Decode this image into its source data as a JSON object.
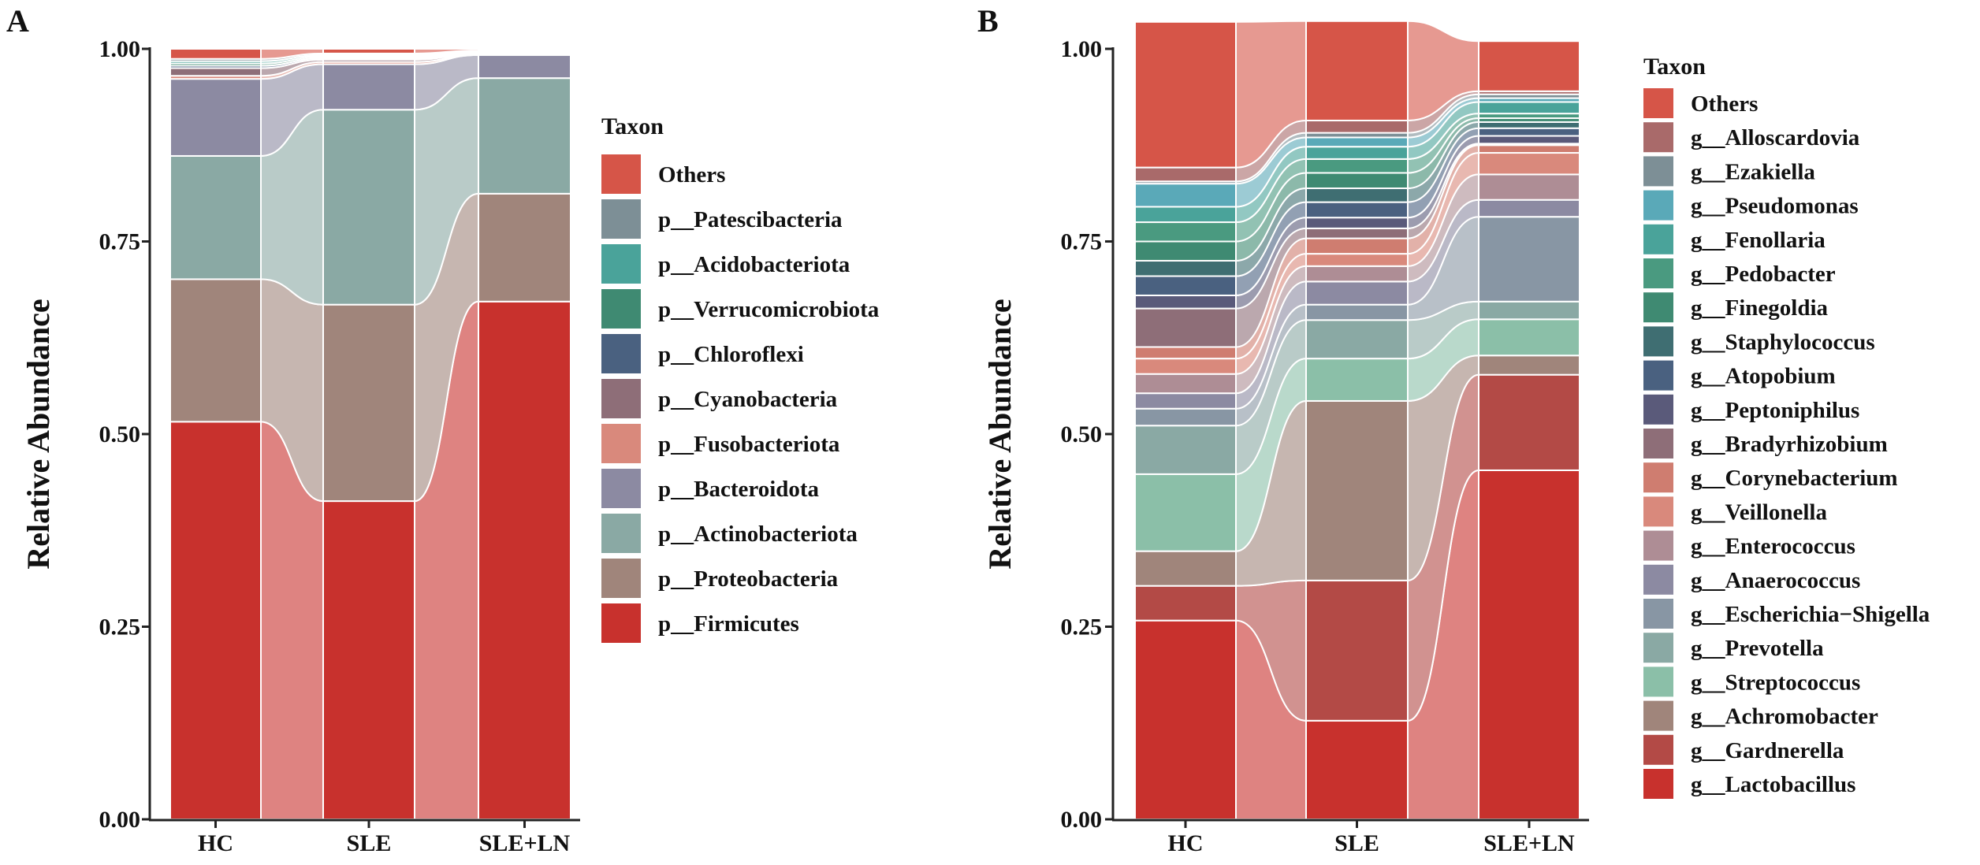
{
  "chart_data": [
    {
      "type": "stacked-bar-alluvial",
      "panel_label": "A",
      "title": "",
      "xlabel": "",
      "ylabel": "Relative Abundance",
      "ylim": [
        0,
        1
      ],
      "yticks": [
        "0.00",
        "0.25",
        "0.50",
        "0.75",
        "1.00"
      ],
      "categories": [
        "HC",
        "SLE",
        "SLE+LN"
      ],
      "legend_title": "Taxon",
      "series": [
        {
          "name": "p__Firmicutes",
          "color": "#c8312d",
          "values": [
            0.516,
            0.413,
            0.672
          ]
        },
        {
          "name": "p__Proteobacteria",
          "color": "#a0857b",
          "values": [
            0.185,
            0.255,
            0.14
          ]
        },
        {
          "name": "p__Actinobacteriota",
          "color": "#8aa9a4",
          "values": [
            0.16,
            0.253,
            0.15
          ]
        },
        {
          "name": "p__Bacteroidota",
          "color": "#8c8aa2",
          "values": [
            0.1,
            0.059,
            0.03
          ]
        },
        {
          "name": "p__Fusobacteriota",
          "color": "#d9897c",
          "values": [
            0.004,
            0.003,
            0.001
          ]
        },
        {
          "name": "p__Cyanobacteria",
          "color": "#8e6e78",
          "values": [
            0.01,
            0.003,
            0.001
          ]
        },
        {
          "name": "p__Chloroflexi",
          "color": "#4a6180",
          "values": [
            0.003,
            0.002,
            0.001
          ]
        },
        {
          "name": "p__Verrucomicrobiota",
          "color": "#3f8a72",
          "values": [
            0.003,
            0.002,
            0.001
          ]
        },
        {
          "name": "p__Acidobacteriota",
          "color": "#4aa39a",
          "values": [
            0.003,
            0.002,
            0.001
          ]
        },
        {
          "name": "p__Patescibacteria",
          "color": "#7d8f96",
          "values": [
            0.003,
            0.002,
            0.001
          ]
        },
        {
          "name": "Others",
          "color": "#d65548",
          "values": [
            0.013,
            0.006,
            0.002
          ]
        }
      ]
    },
    {
      "type": "stacked-bar-alluvial",
      "panel_label": "B",
      "title": "",
      "xlabel": "",
      "ylabel": "Relative Abundance",
      "ylim": [
        0,
        1
      ],
      "yticks": [
        "0.00",
        "0.25",
        "0.50",
        "0.75",
        "1.00"
      ],
      "categories": [
        "HC",
        "SLE",
        "SLE+LN"
      ],
      "legend_title": "Taxon",
      "series": [
        {
          "name": "g__Lactobacillus",
          "color": "#c8312d",
          "values": [
            0.258,
            0.128,
            0.453
          ]
        },
        {
          "name": "g__Gardnerella",
          "color": "#b34a46",
          "values": [
            0.045,
            0.182,
            0.124
          ]
        },
        {
          "name": "g__Achromobacter",
          "color": "#a0857b",
          "values": [
            0.045,
            0.233,
            0.025
          ]
        },
        {
          "name": "g__Streptococcus",
          "color": "#8bbfa8",
          "values": [
            0.1,
            0.055,
            0.047
          ]
        },
        {
          "name": "g__Prevotella",
          "color": "#8aa9a4",
          "values": [
            0.063,
            0.05,
            0.023
          ]
        },
        {
          "name": "g__Escherichia−Shigella",
          "color": "#8896a4",
          "values": [
            0.022,
            0.02,
            0.11
          ]
        },
        {
          "name": "g__Anaerococcus",
          "color": "#8c8aa2",
          "values": [
            0.02,
            0.03,
            0.022
          ]
        },
        {
          "name": "g__Enterococcus",
          "color": "#ae8d95",
          "values": [
            0.025,
            0.02,
            0.033
          ]
        },
        {
          "name": "g__Veillonella",
          "color": "#d9897c",
          "values": [
            0.02,
            0.016,
            0.028
          ]
        },
        {
          "name": "g__Corynebacterium",
          "color": "#cf7d70",
          "values": [
            0.015,
            0.02,
            0.01
          ]
        },
        {
          "name": "g__Bradyrhizobium",
          "color": "#8e6e78",
          "values": [
            0.05,
            0.013,
            0.002
          ]
        },
        {
          "name": "g__Peptoniphilus",
          "color": "#5a5a7a",
          "values": [
            0.017,
            0.014,
            0.01
          ]
        },
        {
          "name": "g__Atopobium",
          "color": "#4a6180",
          "values": [
            0.025,
            0.02,
            0.01
          ]
        },
        {
          "name": "g__Staphylococcus",
          "color": "#3f6e72",
          "values": [
            0.02,
            0.018,
            0.008
          ]
        },
        {
          "name": "g__Finegoldia",
          "color": "#3f8a72",
          "values": [
            0.025,
            0.02,
            0.005
          ]
        },
        {
          "name": "g__Pedobacter",
          "color": "#4a9a80",
          "values": [
            0.025,
            0.018,
            0.006
          ]
        },
        {
          "name": "g__Fenollaria",
          "color": "#4aa39a",
          "values": [
            0.02,
            0.016,
            0.015
          ]
        },
        {
          "name": "g__Pseudomonas",
          "color": "#5aa9b8",
          "values": [
            0.03,
            0.012,
            0.005
          ]
        },
        {
          "name": "g__Ezakiella",
          "color": "#7d8f96",
          "values": [
            0.003,
            0.006,
            0.005
          ]
        },
        {
          "name": "g__Alloscardovia",
          "color": "#a96a6a",
          "values": [
            0.018,
            0.016,
            0.004
          ]
        },
        {
          "name": "Others",
          "color": "#d65548",
          "values": [
            0.189,
            0.129,
            0.065
          ]
        }
      ]
    }
  ]
}
